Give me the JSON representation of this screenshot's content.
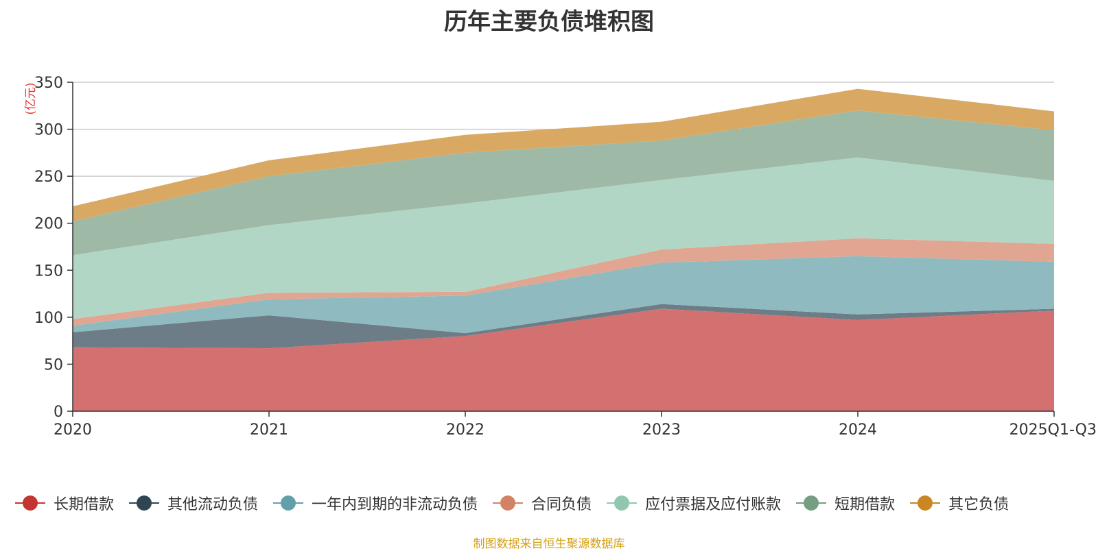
{
  "colors": {
    "axis": "#333333",
    "grid": "#cccccc",
    "unit": "#e53935",
    "source": "#d4a017"
  },
  "chart_data": {
    "type": "area",
    "stacked": true,
    "title": "历年主要负债堆积图",
    "unit_label": "(亿元)",
    "source_note": "制图数据来自恒生聚源数据库",
    "categories": [
      "2020",
      "2021",
      "2022",
      "2023",
      "2024",
      "2025Q1-Q3"
    ],
    "ylim": [
      0,
      350
    ],
    "yticks": [
      0,
      50,
      100,
      150,
      200,
      250,
      300,
      350
    ],
    "legend_position": "bottom",
    "series": [
      {
        "name": "长期借款",
        "color": "#c23531",
        "fill": "#d37070",
        "values": [
          68,
          67,
          80,
          109,
          97,
          107
        ]
      },
      {
        "name": "其他流动负债",
        "color": "#2f4554",
        "fill": "#6d7d88",
        "values": [
          16,
          35,
          3,
          5,
          6,
          2
        ]
      },
      {
        "name": "一年内到期的非流动负债",
        "color": "#61a0a8",
        "fill": "#8fbbc0",
        "values": [
          7,
          17,
          40,
          44,
          62,
          50
        ]
      },
      {
        "name": "合同负债",
        "color": "#d48265",
        "fill": "#e0a692",
        "values": [
          7,
          7,
          4,
          14,
          19,
          19
        ]
      },
      {
        "name": "应付票据及应付账款",
        "color": "#91c7ae",
        "fill": "#b2d6c5",
        "values": [
          68,
          72,
          94,
          74,
          86,
          67
        ]
      },
      {
        "name": "短期借款",
        "color": "#749f83",
        "fill": "#9eb9a6",
        "values": [
          36,
          52,
          54,
          42,
          50,
          54
        ]
      },
      {
        "name": "其它负债",
        "color": "#ca8622",
        "fill": "#d9a963",
        "values": [
          16,
          17,
          19,
          20,
          23,
          20
        ]
      }
    ]
  }
}
